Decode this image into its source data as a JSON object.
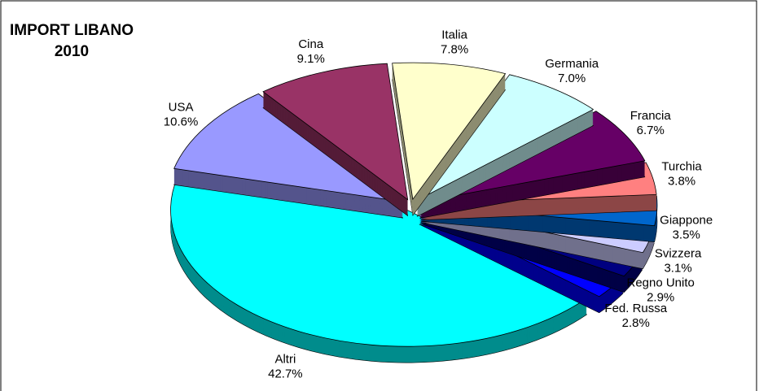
{
  "chart_data": {
    "type": "pie3d",
    "title": "IMPORT LIBANO",
    "subtitle": "2010",
    "categories": [
      "Italia",
      "Germania",
      "Francia",
      "Turchia",
      "Giappone",
      "Svizzera",
      "Regno Unito",
      "Fed. Russa",
      "Altri",
      "USA",
      "Cina"
    ],
    "values": [
      7.8,
      7.0,
      6.7,
      3.8,
      3.5,
      3.1,
      2.9,
      2.8,
      42.7,
      10.6,
      9.1
    ],
    "value_labels": [
      "7.8%",
      "7.0%",
      "6.7%",
      "3.8%",
      "3.5%",
      "3.1%",
      "2.9%",
      "2.8%",
      "42.7%",
      "10.6%",
      "9.1%"
    ],
    "colors": [
      "#FFFFCC",
      "#CCFFFF",
      "#660066",
      "#FF8080",
      "#0066CC",
      "#CCCCFF",
      "#000080",
      "#0000FF",
      "#00FFFF",
      "#9999FF",
      "#993366"
    ]
  }
}
